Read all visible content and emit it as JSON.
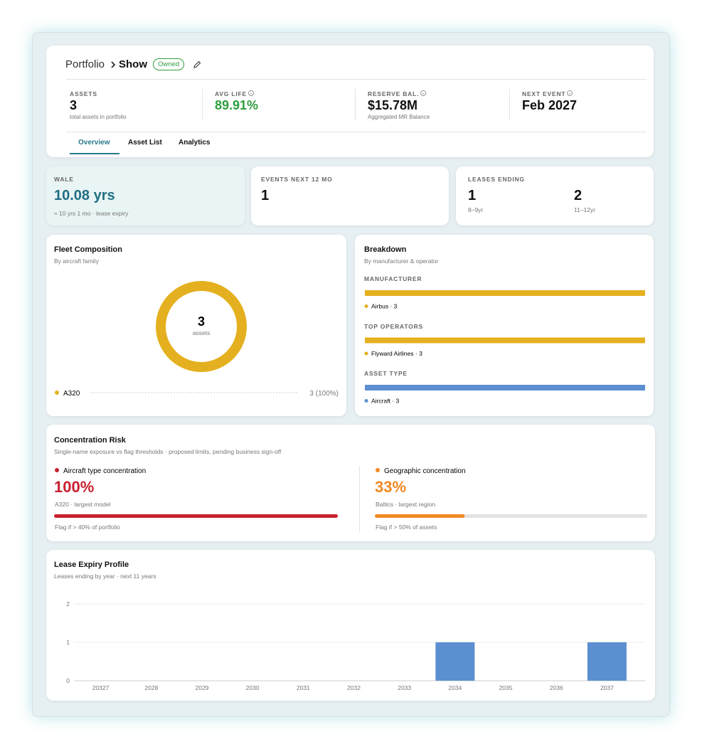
{
  "header": {
    "breadcrumb": [
      "Portfolio",
      "Show"
    ],
    "badge": "Owned",
    "stats": [
      {
        "label": "ASSETS",
        "value": "3",
        "note": "total assets in portfolio"
      },
      {
        "label": "AVG LIFE",
        "value": "89.91%"
      },
      {
        "label": "RESERVE BAL.",
        "value": "$15.78M",
        "note": "Aggregated MR Balance"
      },
      {
        "label": "NEXT EVENT",
        "value": "Feb 2027"
      }
    ],
    "tabs": [
      "Overview",
      "Asset List",
      "Analytics"
    ]
  },
  "kpis": {
    "wale": {
      "label": "WALE",
      "value": "10.08 yrs",
      "note": "≈ 10 yrs 1 mo · lease expiry"
    },
    "events": {
      "label": "EVENTS NEXT 12 MO",
      "value": "1"
    },
    "leases": {
      "label": "LEASES ENDING",
      "groups": [
        {
          "value": "1",
          "range": "8–9yr"
        },
        {
          "value": "2",
          "range": "11–12yr"
        }
      ]
    }
  },
  "fleet": {
    "title": "Fleet Composition",
    "subtitle": "By aircraft family",
    "total": 3,
    "center_label": "assets",
    "items": [
      {
        "label": "A320",
        "value": 3,
        "value_label": "3 (100%)",
        "color": "#e5b01f"
      }
    ]
  },
  "breakdown": {
    "title": "Breakdown",
    "subtitle": "By manufacturer & operator",
    "groups": [
      {
        "heading": "MANUFACTURER",
        "items": [
          {
            "label": "Airbus · 3",
            "value": 3,
            "color": "#e5b01f"
          }
        ]
      },
      {
        "heading": "TOP OPERATORS",
        "items": [
          {
            "label": "Flyward Airlines · 3",
            "value": 3,
            "color": "#e5b01f"
          }
        ]
      },
      {
        "heading": "ASSET TYPE",
        "items": [
          {
            "label": "Aircraft · 3",
            "value": 3,
            "color": "#5b8fd0"
          }
        ]
      }
    ]
  },
  "concentration": {
    "title": "Concentration Risk",
    "subtitle": "Single-name exposure vs flag thresholds · proposed limits, pending business sign-off",
    "xlim": [
      0,
      100
    ],
    "panels": [
      {
        "label": "Aircraft type concentration",
        "value": 100,
        "value_label": "100%",
        "note": "A320 · largest model",
        "flag": "Flag if > 40% of portfolio",
        "color": "#c8202f"
      },
      {
        "label": "Geographic concentration",
        "value": 33,
        "value_label": "33%",
        "note": "Baltics · largest region",
        "flag": "Flag if > 50% of assets",
        "color": "#f08a24"
      }
    ]
  },
  "chart_data": {
    "type": "bar",
    "title": "Lease Expiry Profile",
    "subtitle": "Leases ending by year · next 11 years",
    "categories": [
      "20327",
      "2028",
      "2029",
      "2030",
      "2031",
      "2032",
      "2033",
      "2034",
      "2035",
      "2036",
      "2037"
    ],
    "values": [
      0,
      0,
      0,
      0,
      0,
      0,
      0,
      1,
      0,
      0,
      1
    ],
    "color": "#5b8fd0",
    "ylim": [
      0,
      2
    ],
    "yticks": [
      0,
      1,
      2
    ],
    "grid": true
  }
}
